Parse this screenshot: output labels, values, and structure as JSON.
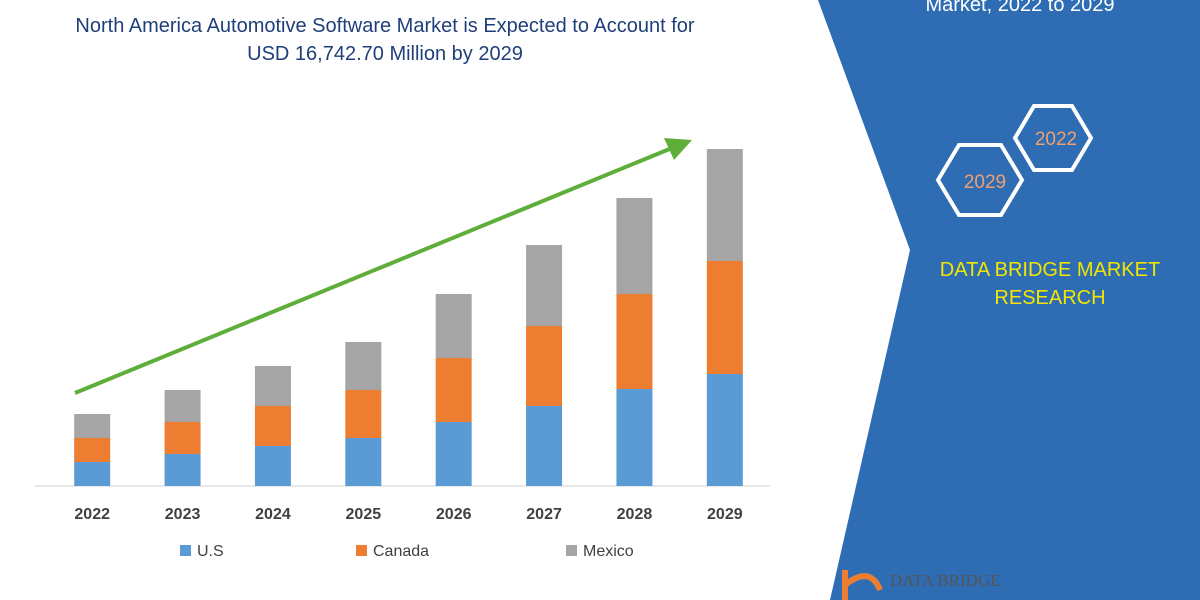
{
  "side_heading": "Market, 2022 to 2029",
  "badges": [
    "2022",
    "2029"
  ],
  "brand": "DATA BRIDGE MARKET RESEARCH",
  "logo": "DATA BRIDGE",
  "chart_data": {
    "type": "stacked-bar",
    "title": "North America Automotive Software Market is Expected to Account for USD 16,742.70 Million by 2029",
    "categories": [
      "2022",
      "2023",
      "2024",
      "2025",
      "2026",
      "2027",
      "2028",
      "2029"
    ],
    "series": [
      {
        "name": "U.S",
        "color": "#5b9bd5",
        "values": [
          24,
          32,
          40,
          48,
          64,
          80,
          97,
          112
        ]
      },
      {
        "name": "Canada",
        "color": "#ed7d31",
        "values": [
          24,
          32,
          40,
          48,
          64,
          80,
          95,
          113
        ]
      },
      {
        "name": "Mexico",
        "color": "#a5a5a5",
        "values": [
          24,
          32,
          40,
          48,
          64,
          81,
          96,
          112
        ]
      }
    ]
  }
}
